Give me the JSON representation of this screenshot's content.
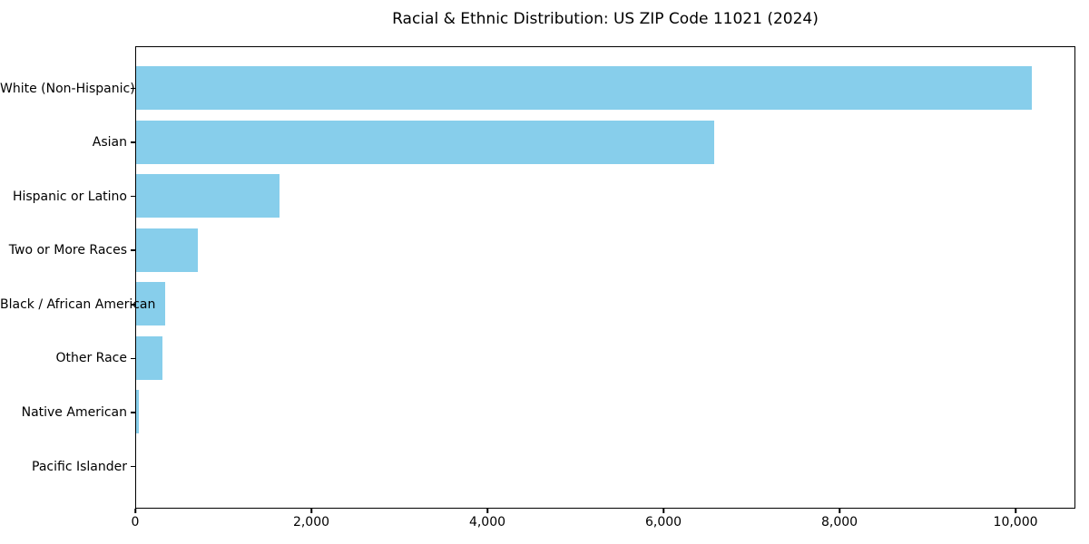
{
  "chart_data": {
    "type": "bar",
    "orientation": "horizontal",
    "title": "Racial & Ethnic Distribution: US ZIP Code 11021 (2024)",
    "categories": [
      "White (Non-Hispanic)",
      "Asian",
      "Hispanic or Latino",
      "Two or More Races",
      "Black / African American",
      "Other Race",
      "Native American",
      "Pacific Islander"
    ],
    "values": [
      10170,
      6570,
      1630,
      700,
      330,
      300,
      30,
      0
    ],
    "xlabel": "",
    "ylabel": "",
    "xlim": [
      0,
      10680
    ],
    "xticks": [
      0,
      2000,
      4000,
      6000,
      8000,
      10000
    ],
    "xtick_labels": [
      "0",
      "2,000",
      "4,000",
      "6,000",
      "8,000",
      "10,000"
    ],
    "bar_color": "#87CEEB",
    "text_color": "#000000",
    "background_color": "#FFFFFF",
    "grid": false,
    "legend": "none"
  }
}
